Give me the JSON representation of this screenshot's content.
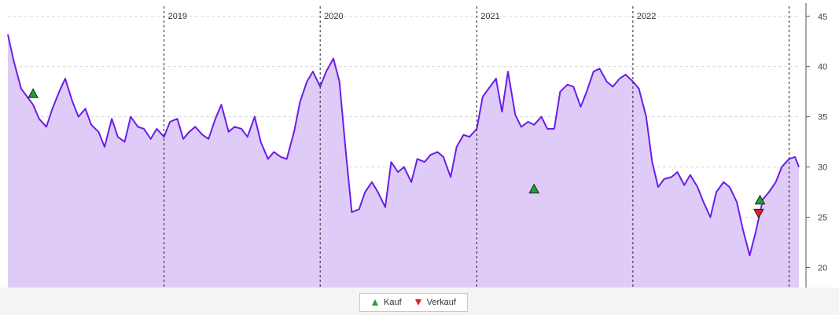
{
  "chart_data": {
    "type": "area",
    "title": "",
    "xlabel": "",
    "ylabel": "",
    "ylim": [
      18,
      46
    ],
    "xlim": [
      "2018-01-01",
      "2023-01-24"
    ],
    "y_axis_position": "right",
    "y_ticks": [
      20,
      25,
      30,
      35,
      40,
      45
    ],
    "grid": {
      "horizontal": true,
      "vertical_year_lines": true
    },
    "year_markers": [
      {
        "date": "2019-01-01",
        "label": "2019"
      },
      {
        "date": "2020-01-01",
        "label": "2020"
      },
      {
        "date": "2021-01-01",
        "label": "2021"
      },
      {
        "date": "2022-01-01",
        "label": "2022"
      },
      {
        "date": "2023-01-01",
        "label": ""
      }
    ],
    "line_color": "#6a1ee8",
    "fill_color": "#dfcbf8",
    "series": [
      {
        "x": [
          "2018-01-01",
          "2018-01-15",
          "2018-02-01",
          "2018-02-15",
          "2018-03-01",
          "2018-03-15",
          "2018-04-01",
          "2018-04-15",
          "2018-05-01",
          "2018-05-15",
          "2018-06-01",
          "2018-06-15",
          "2018-07-01",
          "2018-07-15",
          "2018-08-01",
          "2018-08-15",
          "2018-09-01",
          "2018-09-15",
          "2018-10-01",
          "2018-10-15",
          "2018-11-01",
          "2018-11-15",
          "2018-12-01",
          "2018-12-15",
          "2019-01-01",
          "2019-01-15",
          "2019-02-01",
          "2019-02-15",
          "2019-03-01",
          "2019-03-15",
          "2019-04-01",
          "2019-04-15",
          "2019-05-01",
          "2019-05-15",
          "2019-06-01",
          "2019-06-15",
          "2019-07-01",
          "2019-07-15",
          "2019-08-01",
          "2019-08-15",
          "2019-09-01",
          "2019-09-15",
          "2019-10-01",
          "2019-10-15",
          "2019-11-01",
          "2019-11-15",
          "2019-12-01",
          "2019-12-15",
          "2020-01-01",
          "2020-01-15",
          "2020-02-01",
          "2020-02-15",
          "2020-03-01",
          "2020-03-15",
          "2020-04-01",
          "2020-04-15",
          "2020-05-01",
          "2020-05-15",
          "2020-06-01",
          "2020-06-15",
          "2020-07-01",
          "2020-07-15",
          "2020-08-01",
          "2020-08-15",
          "2020-09-01",
          "2020-09-15",
          "2020-10-01",
          "2020-10-15",
          "2020-11-01",
          "2020-11-15",
          "2020-12-01",
          "2020-12-15",
          "2021-01-01",
          "2021-01-15",
          "2021-02-01",
          "2021-02-15",
          "2021-03-01",
          "2021-03-15",
          "2021-04-01",
          "2021-04-15",
          "2021-05-01",
          "2021-05-15",
          "2021-06-01",
          "2021-06-15",
          "2021-07-01",
          "2021-07-15",
          "2021-08-01",
          "2021-08-15",
          "2021-09-01",
          "2021-09-15",
          "2021-10-01",
          "2021-10-15",
          "2021-11-01",
          "2021-11-15",
          "2021-12-01",
          "2021-12-15",
          "2022-01-01",
          "2022-01-15",
          "2022-02-01",
          "2022-02-15",
          "2022-03-01",
          "2022-03-15",
          "2022-04-01",
          "2022-04-15",
          "2022-05-01",
          "2022-05-15",
          "2022-06-01",
          "2022-06-15",
          "2022-07-01",
          "2022-07-15",
          "2022-08-01",
          "2022-08-15",
          "2022-09-01",
          "2022-09-15",
          "2022-10-01",
          "2022-10-15",
          "2022-11-01",
          "2022-11-15",
          "2022-12-01",
          "2022-12-15",
          "2023-01-01",
          "2023-01-15",
          "2023-01-24"
        ],
        "y": [
          43.2,
          40.5,
          37.8,
          37.0,
          36.2,
          34.8,
          34.0,
          35.8,
          37.5,
          38.8,
          36.5,
          35.0,
          35.8,
          34.2,
          33.5,
          32.0,
          34.8,
          33.0,
          32.5,
          35.0,
          34.0,
          33.8,
          32.8,
          33.8,
          33.0,
          34.5,
          34.8,
          32.8,
          33.5,
          34.0,
          33.2,
          32.8,
          34.8,
          36.2,
          33.5,
          34.0,
          33.8,
          33.0,
          35.0,
          32.5,
          30.8,
          31.5,
          31.0,
          30.8,
          33.5,
          36.5,
          38.5,
          39.5,
          38.0,
          39.5,
          40.8,
          38.5,
          31.5,
          25.5,
          25.8,
          27.5,
          28.5,
          27.5,
          26.0,
          30.5,
          29.5,
          30.0,
          28.5,
          30.8,
          30.5,
          31.2,
          31.5,
          31.0,
          29.0,
          32.0,
          33.2,
          33.0,
          33.8,
          37.0,
          38.0,
          38.8,
          35.5,
          39.5,
          35.2,
          34.0,
          34.5,
          34.2,
          35.0,
          33.8,
          33.8,
          37.5,
          38.2,
          38.0,
          36.0,
          37.5,
          39.5,
          39.8,
          38.5,
          38.0,
          38.8,
          39.2,
          38.5,
          37.8,
          35.0,
          30.5,
          28.0,
          28.8,
          29.0,
          29.5,
          28.2,
          29.2,
          28.0,
          26.5,
          25.0,
          27.5,
          28.5,
          28.0,
          26.5,
          23.8,
          21.2,
          23.5,
          26.8,
          27.5,
          28.5,
          30.0,
          30.8,
          31.0,
          30.0
        ]
      }
    ],
    "markers": [
      {
        "type": "Kauf",
        "date": "2018-03-01",
        "price": 37.3
      },
      {
        "type": "Kauf",
        "date": "2021-05-15",
        "price": 27.8
      },
      {
        "type": "Kauf",
        "date": "2022-10-25",
        "price": 26.7
      },
      {
        "type": "Verkauf",
        "date": "2022-10-22",
        "price": 25.4
      }
    ]
  },
  "legend": {
    "placement": "bottom-center",
    "items": [
      {
        "label": "Kauf",
        "color": "#1aa33a",
        "icon": "triangle-up-icon"
      },
      {
        "label": "Verkauf",
        "color": "#e02020",
        "icon": "triangle-down-icon"
      }
    ]
  }
}
